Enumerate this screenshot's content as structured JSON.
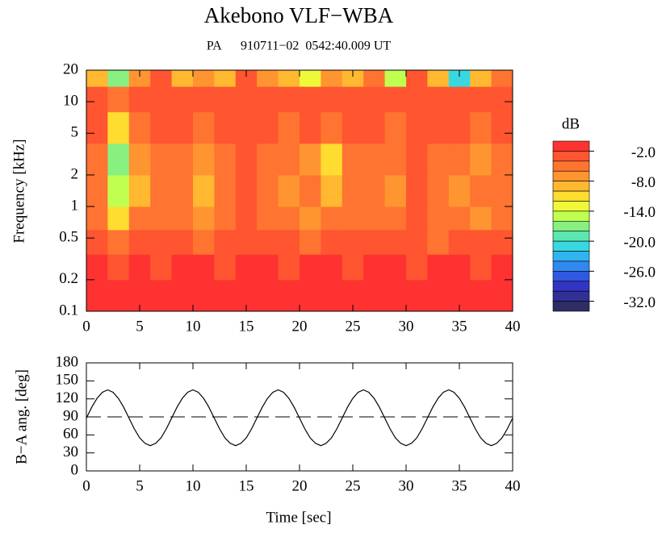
{
  "chart_data": [
    {
      "type": "heatmap",
      "title": "Akebono VLF−WBA",
      "subtitle": "PA      910711−02  0542:40.009 UT",
      "ylabel": "Frequency [kHz]",
      "x_edges": [
        0,
        2,
        4,
        6,
        8,
        10,
        12,
        14,
        16,
        18,
        20,
        22,
        24,
        26,
        28,
        30,
        32,
        34,
        36,
        38,
        40
      ],
      "y_edges": [
        0.1,
        0.2,
        0.35,
        0.6,
        1,
        2,
        4,
        8,
        14,
        20
      ],
      "z": [
        [
          -1,
          -1,
          -1,
          -1,
          -1,
          -1,
          -1,
          -1,
          -1,
          -1,
          -1,
          -1,
          -1,
          -1,
          -1,
          -1,
          -1,
          -1,
          -1,
          -1
        ],
        [
          -1,
          -3,
          -1,
          -3,
          -1,
          -1,
          -3,
          -1,
          -1,
          -3,
          -1,
          -1,
          -3,
          -1,
          -1,
          -3,
          -1,
          -1,
          -3,
          -1
        ],
        [
          -3,
          -5,
          -3,
          -3,
          -3,
          -5,
          -3,
          -3,
          -3,
          -3,
          -5,
          -3,
          -3,
          -3,
          -3,
          -3,
          -5,
          -3,
          -3,
          -3
        ],
        [
          -5,
          -11,
          -5,
          -5,
          -5,
          -7,
          -5,
          -3,
          -5,
          -5,
          -7,
          -5,
          -5,
          -5,
          -5,
          -3,
          -5,
          -5,
          -7,
          -5
        ],
        [
          -5,
          -15,
          -9,
          -5,
          -5,
          -9,
          -5,
          -3,
          -5,
          -7,
          -5,
          -9,
          -5,
          -5,
          -7,
          -3,
          -5,
          -7,
          -5,
          -5
        ],
        [
          -5,
          -17,
          -7,
          -5,
          -5,
          -7,
          -5,
          -3,
          -5,
          -5,
          -7,
          -11,
          -5,
          -5,
          -5,
          -3,
          -5,
          -5,
          -7,
          -5
        ],
        [
          -3,
          -11,
          -5,
          -3,
          -3,
          -5,
          -3,
          -3,
          -3,
          -5,
          -3,
          -5,
          -3,
          -3,
          -5,
          -3,
          -3,
          -3,
          -5,
          -3
        ],
        [
          -3,
          -5,
          -3,
          -3,
          -3,
          -3,
          -3,
          -3,
          -3,
          -3,
          -3,
          -3,
          -3,
          -3,
          -3,
          -3,
          -3,
          -3,
          -3,
          -3
        ],
        [
          -9,
          -17,
          -7,
          -3,
          -9,
          -7,
          -9,
          -3,
          -7,
          -9,
          -13,
          -7,
          -9,
          -5,
          -15,
          -3,
          -9,
          -21,
          -9,
          -5
        ]
      ],
      "xlim": [
        0,
        40
      ],
      "ylim": [
        0.1,
        20
      ],
      "log_y": true,
      "xticks": [
        0,
        5,
        10,
        15,
        20,
        25,
        30,
        35,
        40
      ],
      "yticks": [
        0.1,
        0.2,
        0.5,
        1,
        2,
        5,
        10,
        20
      ],
      "colorbar": {
        "label": "dB",
        "lim": [
          -34,
          0
        ],
        "ticks": [
          {
            "value": -2,
            "label": "-2.0"
          },
          {
            "value": -8,
            "label": "-8.0"
          },
          {
            "value": -14,
            "label": "-14.0"
          },
          {
            "value": -20,
            "label": "-20.0"
          },
          {
            "value": -26,
            "label": "-26.0"
          },
          {
            "value": -32,
            "label": "-32.0"
          }
        ],
        "colors": [
          "#ff3232",
          "#ff5530",
          "#ff7430",
          "#ff9530",
          "#ffb830",
          "#ffdc30",
          "#f0f83a",
          "#c0ff50",
          "#88f080",
          "#5ae8b0",
          "#38d8e0",
          "#30b4f0",
          "#3088f0",
          "#3058e0",
          "#3434c4",
          "#303096",
          "#2e2e64"
        ]
      }
    },
    {
      "type": "line",
      "ylabel": "B−A ang. [deg]",
      "xlabel": "Time [sec]",
      "x": [
        0,
        0.5,
        1,
        1.5,
        2,
        2.5,
        3,
        3.5,
        4,
        4.5,
        5,
        5.5,
        6,
        6.5,
        7,
        7.5,
        8,
        8.5,
        9,
        9.5,
        10,
        10.5,
        11,
        11.5,
        12,
        12.5,
        13,
        13.5,
        14,
        14.5,
        15,
        15.5,
        16,
        16.5,
        17,
        17.5,
        18,
        18.5,
        19,
        19.5,
        20,
        20.5,
        21,
        21.5,
        22,
        22.5,
        23,
        23.5,
        24,
        24.5,
        25,
        25.5,
        26,
        26.5,
        27,
        27.5,
        28,
        28.5,
        29,
        29.5,
        30,
        30.5,
        31,
        31.5,
        32,
        32.5,
        33,
        33.5,
        34,
        34.5,
        35,
        35.5,
        36,
        36.5,
        37,
        37.5,
        38,
        38.5,
        39,
        39.5,
        40
      ],
      "series": [
        {
          "color": "#000000",
          "values": [
            88,
            106,
            121,
            131,
            135,
            131,
            121,
            106,
            88,
            70,
            55,
            46,
            42,
            46,
            55,
            70,
            88,
            106,
            121,
            131,
            135,
            131,
            121,
            106,
            88,
            70,
            55,
            46,
            42,
            46,
            55,
            70,
            88,
            106,
            121,
            131,
            135,
            131,
            121,
            106,
            88,
            70,
            55,
            46,
            42,
            46,
            55,
            70,
            88,
            106,
            121,
            131,
            135,
            131,
            121,
            106,
            88,
            70,
            55,
            46,
            42,
            46,
            55,
            70,
            88,
            106,
            121,
            131,
            135,
            131,
            121,
            106,
            88,
            70,
            55,
            46,
            42,
            46,
            55,
            70,
            88
          ]
        }
      ],
      "hline": 90,
      "xlim": [
        0,
        40
      ],
      "ylim": [
        0,
        180
      ],
      "xticks": [
        0,
        5,
        10,
        15,
        20,
        25,
        30,
        35,
        40
      ],
      "yticks": [
        0,
        30,
        60,
        90,
        120,
        150,
        180
      ]
    }
  ]
}
